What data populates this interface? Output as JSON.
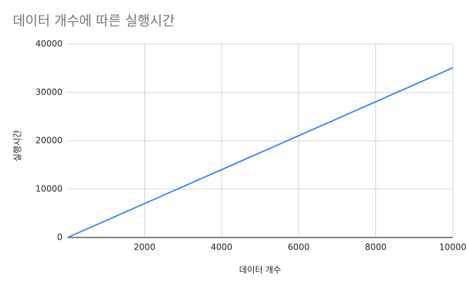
{
  "chart_data": {
    "type": "line",
    "title": "데이터 개수에 따른 실행시간",
    "x_label": "데이터 개수",
    "y_label": "실행시간",
    "x": [
      0,
      2000,
      4000,
      6000,
      8000,
      10000
    ],
    "series": [
      {
        "name": "실행시간",
        "color": "#4285f4",
        "values": [
          0,
          7020,
          14040,
          21060,
          28080,
          35100
        ]
      }
    ],
    "xlim": [
      0,
      10000
    ],
    "xticks": [
      2000,
      4000,
      6000,
      8000,
      10000
    ],
    "ylim": [
      0,
      40000
    ],
    "yticks": [
      0,
      10000,
      20000,
      30000,
      40000
    ],
    "grid": true
  }
}
